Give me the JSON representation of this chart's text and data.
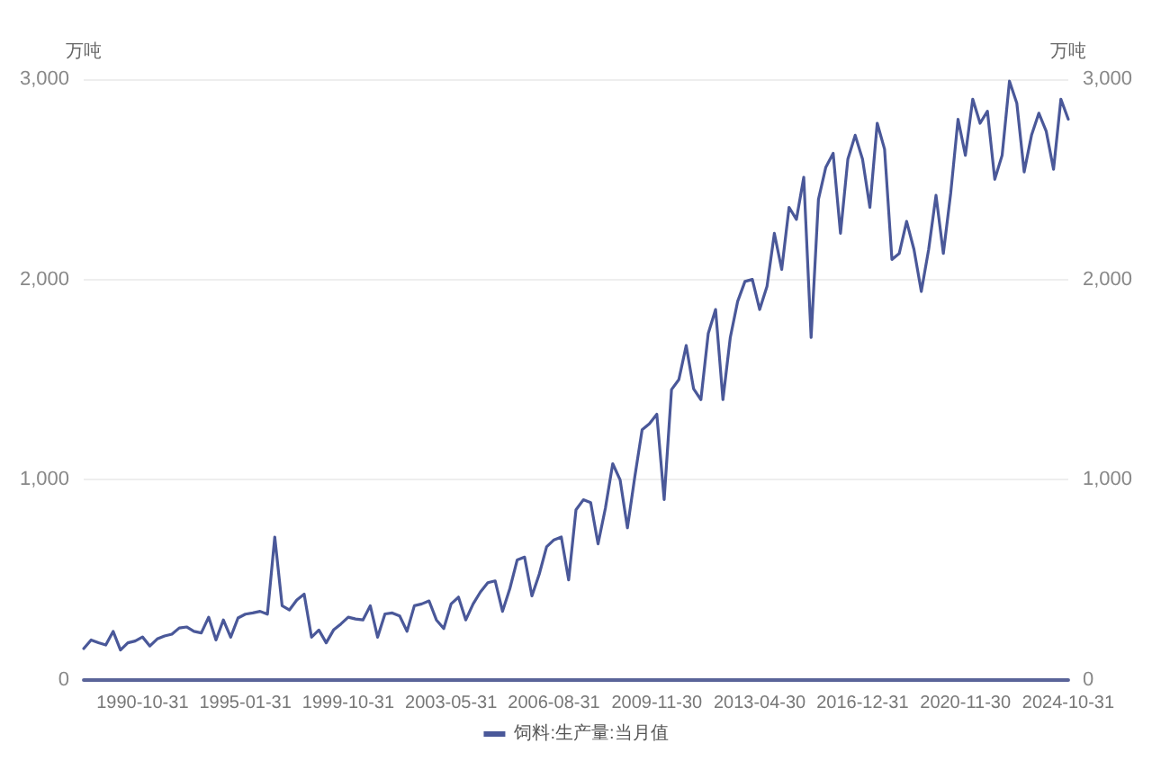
{
  "chart_data": {
    "type": "line",
    "categories": [
      null,
      null,
      null,
      null,
      null,
      null,
      null,
      null,
      "1990-10-31",
      null,
      null,
      null,
      null,
      null,
      null,
      null,
      null,
      null,
      null,
      null,
      null,
      null,
      "1995-01-31",
      null,
      null,
      null,
      null,
      null,
      null,
      null,
      null,
      null,
      null,
      null,
      null,
      null,
      "1999-10-31",
      null,
      null,
      null,
      null,
      null,
      null,
      null,
      null,
      null,
      null,
      null,
      null,
      null,
      "2003-05-31",
      null,
      null,
      null,
      null,
      null,
      null,
      null,
      null,
      null,
      null,
      null,
      null,
      null,
      "2006-08-31",
      null,
      null,
      null,
      null,
      null,
      null,
      null,
      null,
      null,
      null,
      null,
      null,
      null,
      "2009-11-30",
      null,
      null,
      null,
      null,
      null,
      null,
      null,
      null,
      null,
      null,
      null,
      null,
      null,
      "2013-04-30",
      null,
      null,
      null,
      null,
      null,
      null,
      null,
      null,
      null,
      null,
      null,
      null,
      null,
      "2016-12-31",
      null,
      null,
      null,
      null,
      null,
      null,
      null,
      null,
      null,
      null,
      null,
      null,
      null,
      "2020-11-30",
      null,
      null,
      null,
      null,
      null,
      null,
      null,
      null,
      null,
      null,
      null,
      null,
      null,
      "2024-10-31"
    ],
    "series": [
      {
        "name": "饲料:生产量:当月值",
        "color": "#4a5899",
        "values": [
          157,
          200,
          186,
          175,
          243,
          150,
          186,
          195,
          215,
          170,
          205,
          220,
          229,
          260,
          265,
          243,
          235,
          314,
          200,
          300,
          214,
          310,
          329,
          335,
          343,
          329,
          714,
          371,
          350,
          400,
          429,
          214,
          250,
          186,
          250,
          280,
          314,
          305,
          300,
          371,
          214,
          330,
          335,
          320,
          243,
          371,
          380,
          395,
          300,
          257,
          380,
          414,
          300,
          380,
          440,
          486,
          495,
          343,
          457,
          600,
          614,
          420,
          529,
          665,
          700,
          714,
          500,
          850,
          900,
          886,
          680,
          858,
          1080,
          1000,
          760,
          1014,
          1250,
          1280,
          1327,
          901,
          1450,
          1500,
          1670,
          1455,
          1400,
          1730,
          1850,
          1400,
          1710,
          1890,
          1990,
          2000,
          1850,
          1966,
          2230,
          2050,
          2360,
          2300,
          2510,
          1710,
          2400,
          2560,
          2630,
          2230,
          2600,
          2720,
          2600,
          2360,
          2780,
          2650,
          2100,
          2130,
          2290,
          2150,
          1940,
          2150,
          2420,
          2130,
          2430,
          2800,
          2620,
          2900,
          2780,
          2840,
          2500,
          2620,
          2990,
          2880,
          2537,
          2720,
          2830,
          2740,
          2550,
          2900,
          2800
        ]
      }
    ],
    "ylabel": "万吨",
    "y2label": "万吨",
    "ylim": [
      0,
      3000
    ],
    "yticks": [
      0,
      {
        "value": 1000,
        "label": "1,000"
      },
      {
        "value": 2000,
        "label": "2,000"
      },
      {
        "value": 3000,
        "label": "3,000"
      }
    ],
    "y2lim": [
      0,
      3000
    ],
    "y2ticks": [
      0,
      {
        "value": 1000,
        "label": "1,000"
      },
      {
        "value": 2000,
        "label": "2,000"
      },
      {
        "value": 3000,
        "label": "3,000"
      }
    ],
    "grid": "y",
    "legend": "bottom",
    "marker": "none",
    "line_style": "solid"
  }
}
